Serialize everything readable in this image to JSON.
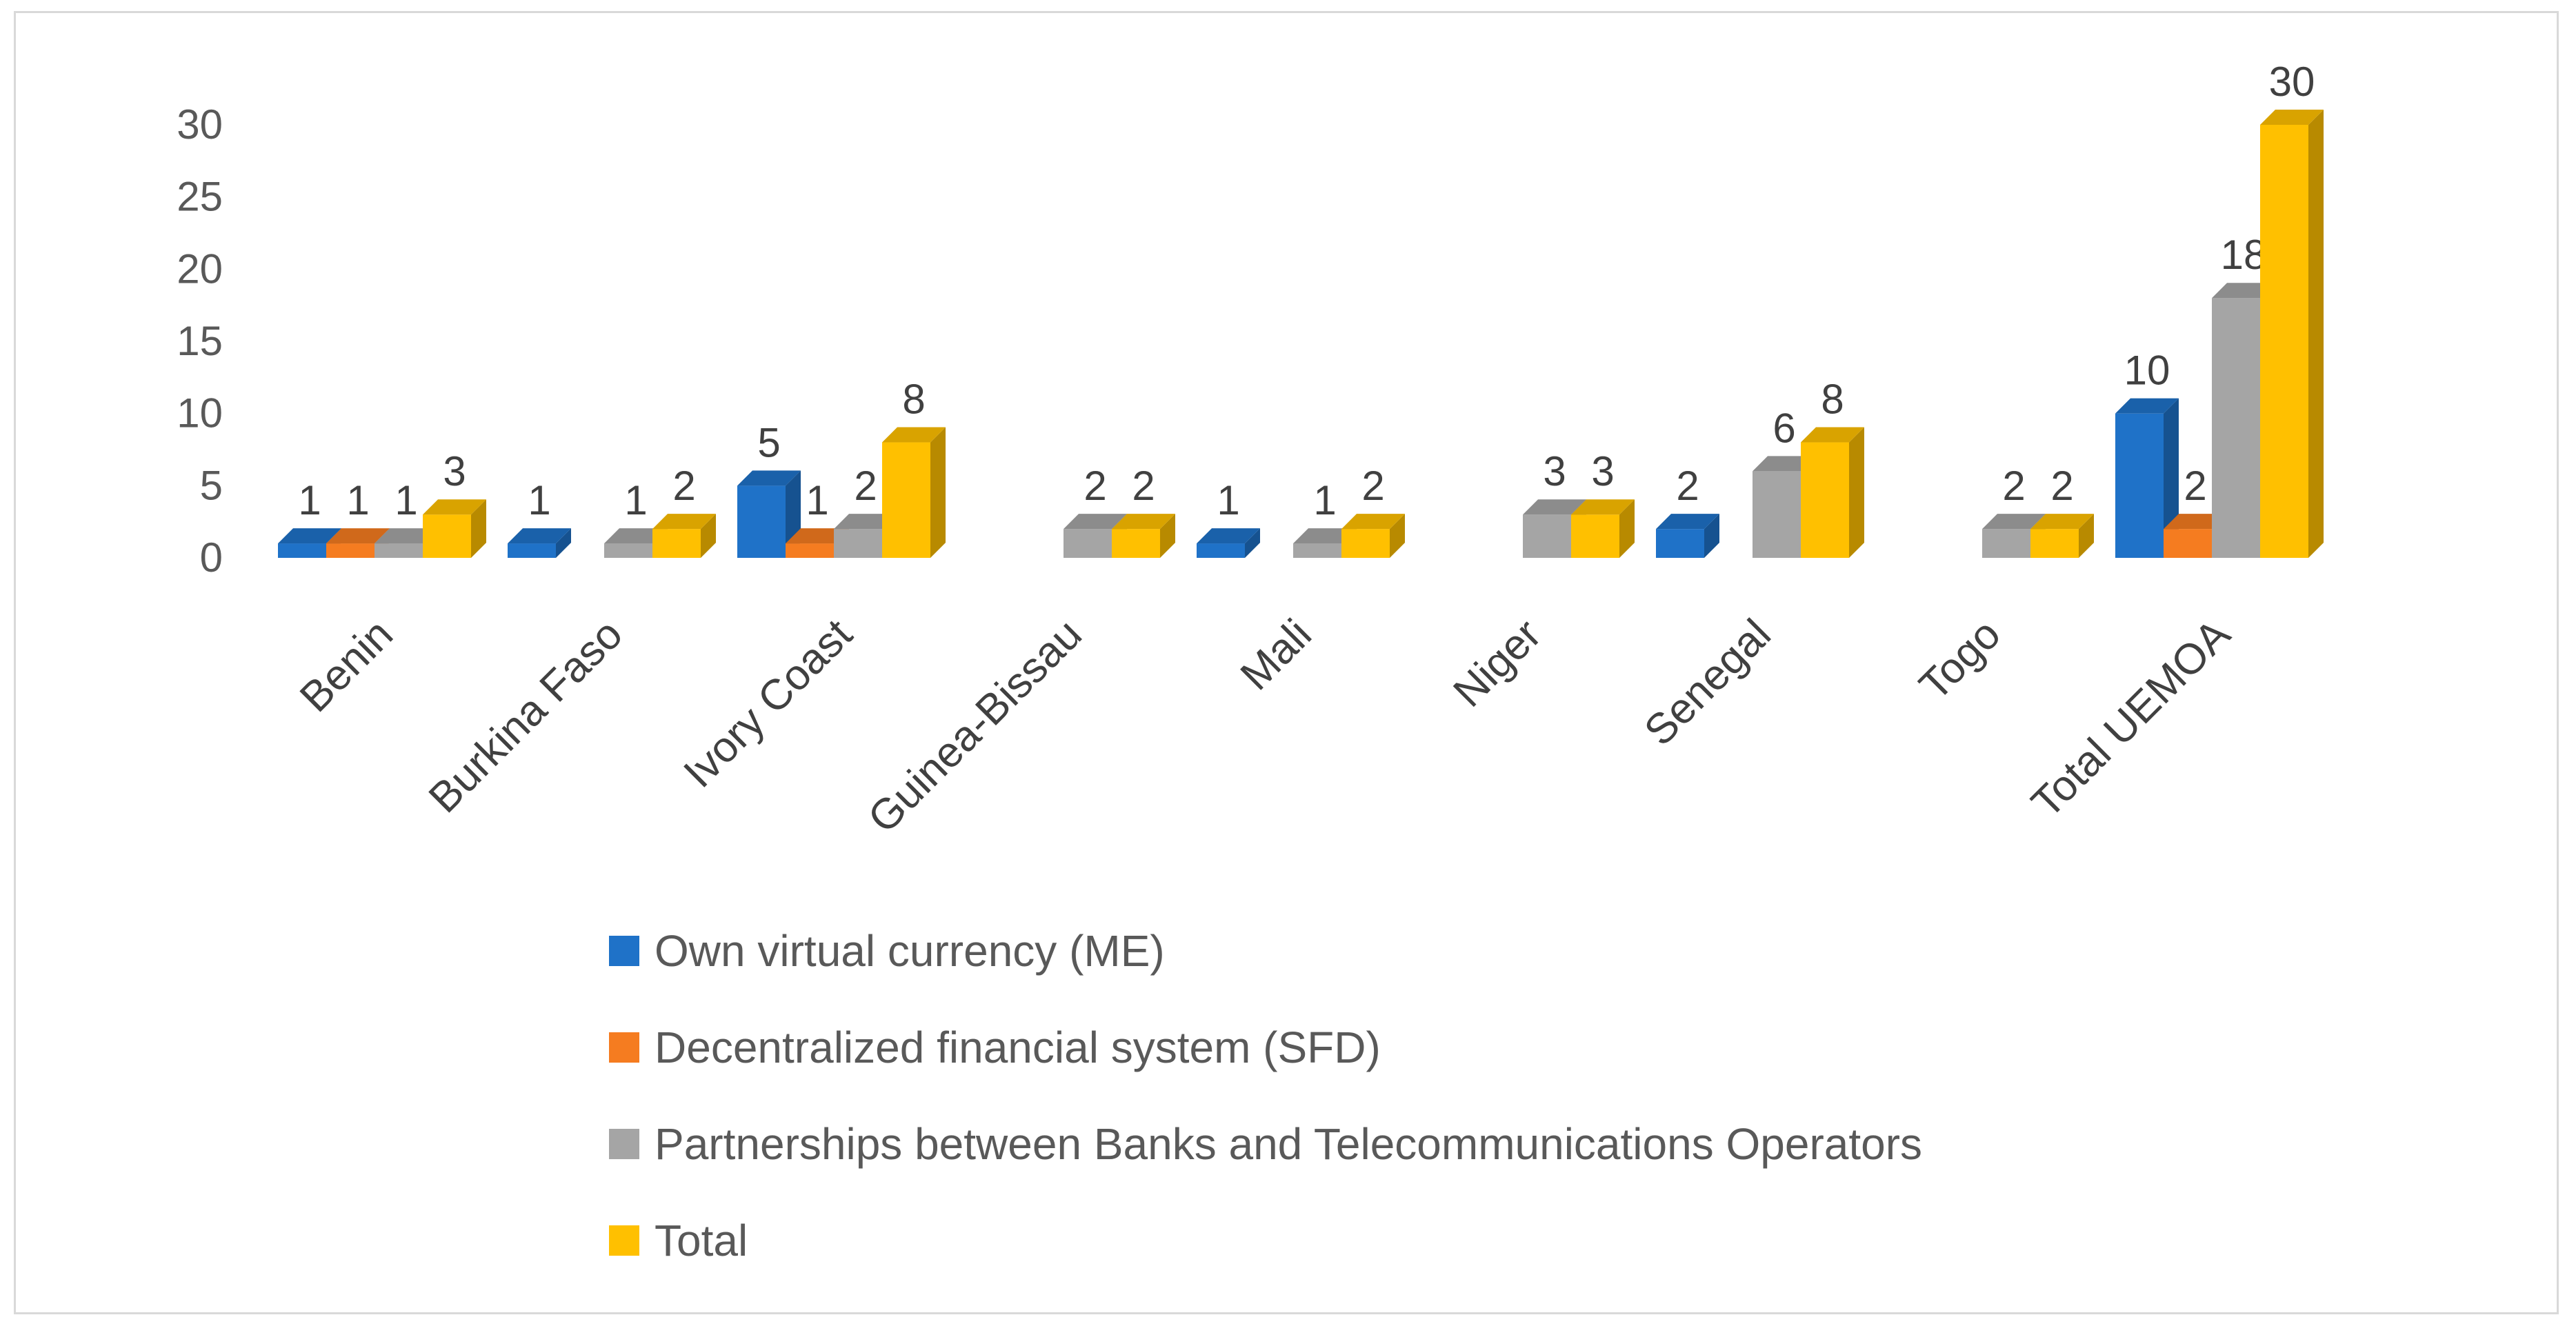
{
  "chart_data": {
    "type": "bar",
    "style": "3d-clustered-column",
    "categories": [
      "Benin",
      "Burkina Faso",
      "Ivory Coast",
      "Guinea-Bissau",
      "Mali",
      "Niger",
      "Senegal",
      "Togo",
      "Total UEMOA"
    ],
    "series": [
      {
        "name": "Own virtual currency (ME)",
        "color": "#1f72c8",
        "values": [
          1,
          1,
          5,
          null,
          1,
          null,
          2,
          null,
          10
        ]
      },
      {
        "name": "Decentralized financial system (SFD)",
        "color": "#f57c20",
        "values": [
          1,
          null,
          1,
          null,
          null,
          null,
          null,
          null,
          2
        ]
      },
      {
        "name": "Partnerships between Banks and Telecommunications Operators",
        "color": "#a5a5a5",
        "values": [
          1,
          1,
          2,
          2,
          1,
          3,
          6,
          2,
          18
        ]
      },
      {
        "name": "Total",
        "color": "#ffc000",
        "values": [
          3,
          2,
          8,
          2,
          2,
          3,
          8,
          2,
          30
        ]
      }
    ],
    "yticks": [
      "0",
      "5",
      "10",
      "15",
      "20",
      "25",
      "30"
    ],
    "ylim": [
      0,
      30
    ],
    "title": "",
    "xlabel": "",
    "ylabel": "",
    "legend_position": "bottom",
    "grid": false
  }
}
